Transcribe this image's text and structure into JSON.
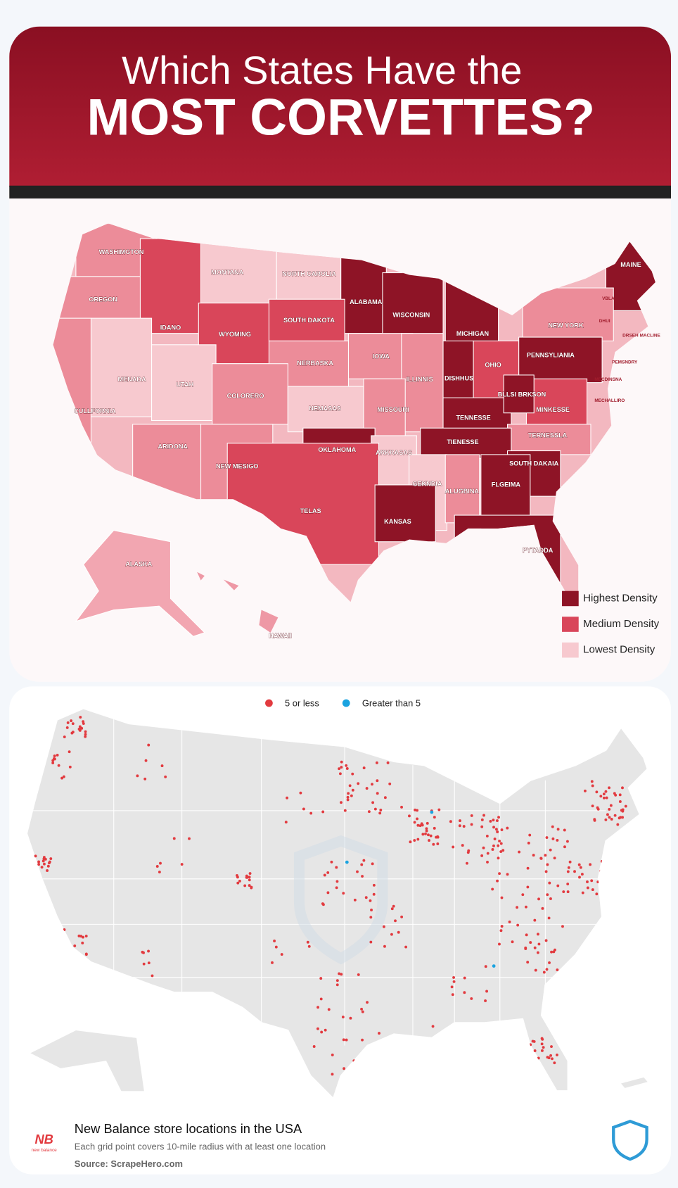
{
  "header": {
    "title_line1": "Which States Have the",
    "title_line2": "MOST CORVETTES?"
  },
  "corvette_map": {
    "state_labels": [
      "WASHIMGTON",
      "MONTANA",
      "NORTH CAROLIA",
      "MAINE",
      "OREGON",
      "ALABAMA",
      "WISCONSIN",
      "MICHIGAN",
      "IDANO",
      "WYOMING",
      "SOUTH DAKOTA",
      "NEW YORK",
      "IOWA",
      "NERBASKA",
      "ILLINNIS",
      "DISHHUS",
      "OHIO",
      "PENNSYLIANIA",
      "MENADA",
      "UTAH",
      "COLORERO",
      "NEMASAS",
      "MISSOURI",
      "CULLFORNIA",
      "TENNESSE",
      "MINKESSE",
      "TERNESSLA",
      "ARIDONA",
      "NEW MESIGO",
      "OKLAHOMA",
      "ARKRASAS",
      "TIENESSE",
      "SOUTH DAKAIA",
      "GEKNDIA",
      "ALUGBINA",
      "FLGEIMA",
      "TELAS",
      "KANSAS",
      "PYTADDA",
      "ALASKA",
      "HAWAII",
      "BLLSI BRKSON",
      "VBLA",
      "DHUI",
      "DRSEH MACLINE",
      "PEMSNDRY",
      "MECDINSNA",
      "MECHALLIRO"
    ],
    "legend": [
      "Highest Density",
      "Medium Density",
      "Lowest Density"
    ]
  },
  "store_map": {
    "legend": [
      "5 or less",
      "Greater than 5"
    ],
    "title": "New Balance store locations in the USA",
    "subtitle": "Each grid point covers 10-mile radius with at least one location",
    "source": "Source: ScrapeHero.com",
    "logo_text": "new balance"
  }
}
